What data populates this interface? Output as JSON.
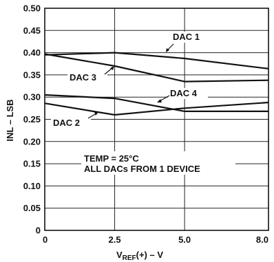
{
  "chart_data": {
    "type": "line",
    "xlabel": {
      "main": "V",
      "sub": "REF",
      "tail": "(+) – V"
    },
    "ylabel": "INL – LSB",
    "xlim": [
      0,
      8
    ],
    "ylim": [
      0,
      0.5
    ],
    "grid": true,
    "x_tick_values": [
      0,
      2.5,
      5.0,
      8.0
    ],
    "x_tick_labels": [
      "0",
      "2.5",
      "5.0",
      "8.0"
    ],
    "y_tick_values": [
      0,
      0.05,
      0.1,
      0.15,
      0.2,
      0.25,
      0.3,
      0.35,
      0.4,
      0.45,
      0.5
    ],
    "y_tick_labels": [
      "0",
      "0.05",
      "0.10",
      "0.15",
      "0.20",
      "0.25",
      "0.30",
      "0.35",
      "0.40",
      "0.45",
      "0.50"
    ],
    "x": [
      0,
      2.5,
      5.0,
      8.0
    ],
    "series": [
      {
        "name": "DAC 1",
        "values": [
          0.395,
          0.4,
          0.387,
          0.364
        ]
      },
      {
        "name": "DAC 3",
        "values": [
          0.397,
          0.37,
          0.335,
          0.338
        ]
      },
      {
        "name": "DAC 4",
        "values": [
          0.305,
          0.297,
          0.268,
          0.268
        ]
      },
      {
        "name": "DAC 2",
        "values": [
          0.286,
          0.26,
          0.275,
          0.288
        ]
      }
    ],
    "annotations": [
      "TEMP = 25°C",
      "ALL DACs FROM 1 DEVICE"
    ],
    "line_color": "#111111",
    "grid_color": "#222222"
  }
}
